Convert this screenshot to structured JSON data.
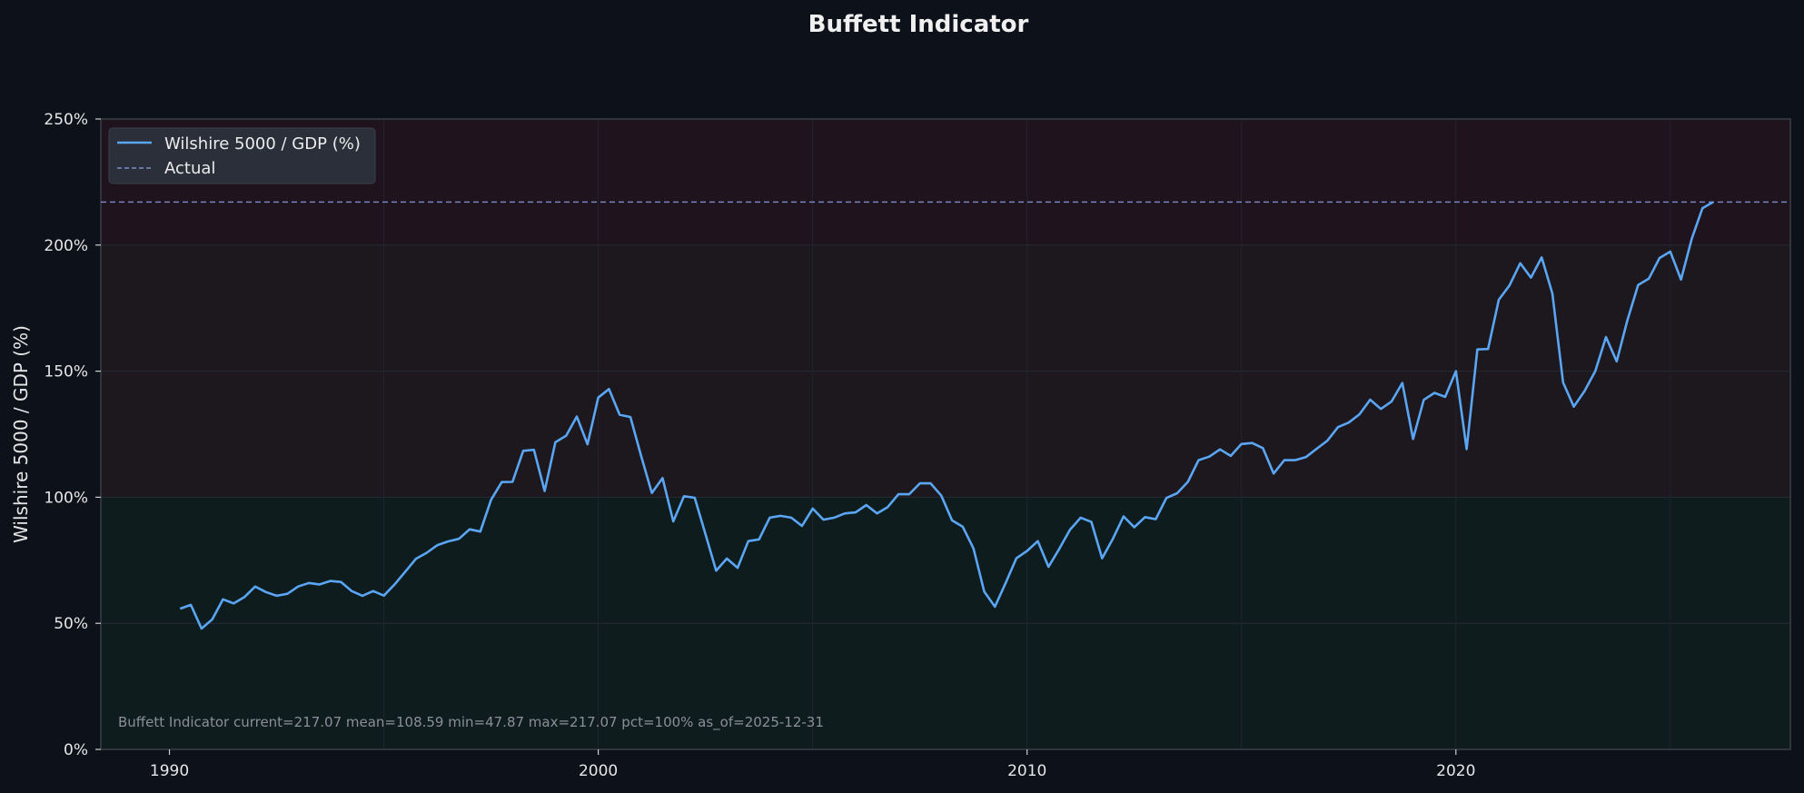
{
  "chart_data": {
    "type": "line",
    "title": "Buffett Indicator",
    "ylabel": "Wilshire 5000 / GDP (%)",
    "xlabel": "",
    "xlim": [
      1988.4,
      2027.8
    ],
    "ylim": [
      0,
      250
    ],
    "x_ticks": [
      1990,
      2000,
      2010,
      2020
    ],
    "y_ticks": [
      {
        "value": 0,
        "label": "0%"
      },
      {
        "value": 50,
        "label": "50%"
      },
      {
        "value": 100,
        "label": "100%"
      },
      {
        "value": 150,
        "label": "150%"
      },
      {
        "value": 200,
        "label": "200%"
      },
      {
        "value": 250,
        "label": "250%"
      }
    ],
    "grid": true,
    "legend_position": "top-left",
    "bands": [
      {
        "from": 0,
        "to": 100,
        "color": "#0f1c1e"
      },
      {
        "from": 100,
        "to": 200,
        "color": "#1d181d"
      },
      {
        "from": 200,
        "to": 250,
        "color": "#1f131d"
      }
    ],
    "series": [
      {
        "name": "Wilshire 5000 / GDP (%)",
        "color": "#5aa6f5",
        "x": [
          1990.25,
          1990.5,
          1990.75,
          1991.0,
          1991.25,
          1991.5,
          1991.75,
          1992.0,
          1992.25,
          1992.5,
          1992.75,
          1993.0,
          1993.25,
          1993.5,
          1993.75,
          1994.0,
          1994.25,
          1994.5,
          1994.75,
          1995.0,
          1995.25,
          1995.5,
          1995.75,
          1996.0,
          1996.25,
          1996.5,
          1996.75,
          1997.0,
          1997.25,
          1997.5,
          1997.75,
          1998.0,
          1998.25,
          1998.5,
          1998.75,
          1999.0,
          1999.25,
          1999.5,
          1999.75,
          2000.0,
          2000.25,
          2000.5,
          2000.75,
          2001.0,
          2001.25,
          2001.5,
          2001.75,
          2002.0,
          2002.25,
          2002.5,
          2002.75,
          2003.0,
          2003.25,
          2003.5,
          2003.75,
          2004.0,
          2004.25,
          2004.5,
          2004.75,
          2005.0,
          2005.25,
          2005.5,
          2005.75,
          2006.0,
          2006.25,
          2006.5,
          2006.75,
          2007.0,
          2007.25,
          2007.5,
          2007.75,
          2008.0,
          2008.25,
          2008.5,
          2008.75,
          2009.0,
          2009.25,
          2009.5,
          2009.75,
          2010.0,
          2010.25,
          2010.5,
          2010.75,
          2011.0,
          2011.25,
          2011.5,
          2011.75,
          2012.0,
          2012.25,
          2012.5,
          2012.75,
          2013.0,
          2013.25,
          2013.5,
          2013.75,
          2014.0,
          2014.25,
          2014.5,
          2014.75,
          2015.0,
          2015.25,
          2015.5,
          2015.75,
          2016.0,
          2016.25,
          2016.5,
          2016.75,
          2017.0,
          2017.25,
          2017.5,
          2017.75,
          2018.0,
          2018.25,
          2018.5,
          2018.75,
          2019.0,
          2019.25,
          2019.5,
          2019.75,
          2020.0,
          2020.25,
          2020.5,
          2020.75,
          2021.0,
          2021.25,
          2021.5,
          2021.75,
          2022.0,
          2022.25,
          2022.5,
          2022.75,
          2023.0,
          2023.25,
          2023.5,
          2023.75,
          2024.0,
          2024.25,
          2024.5,
          2024.75,
          2025.0,
          2025.25,
          2025.5,
          2025.75,
          2026.0
        ],
        "values": [
          55.8,
          57.3,
          47.9,
          51.6,
          59.5,
          57.9,
          60.4,
          64.6,
          62.4,
          60.9,
          61.7,
          64.6,
          66.0,
          65.4,
          66.8,
          66.4,
          62.8,
          60.9,
          62.8,
          61.0,
          65.4,
          70.5,
          75.6,
          78.0,
          81.0,
          82.5,
          83.5,
          87.3,
          86.4,
          99.0,
          106.0,
          106.1,
          118.4,
          118.8,
          102.5,
          121.8,
          124.4,
          132.0,
          121.0,
          139.5,
          142.9,
          132.7,
          131.8,
          116.4,
          101.7,
          107.6,
          90.4,
          100.4,
          99.8,
          85.4,
          70.9,
          75.7,
          72.0,
          82.6,
          83.3,
          91.9,
          92.6,
          91.9,
          88.6,
          95.5,
          91.1,
          91.9,
          93.6,
          94.0,
          96.9,
          93.6,
          96.1,
          101.2,
          101.2,
          105.5,
          105.5,
          100.6,
          90.8,
          88.3,
          79.7,
          62.6,
          56.6,
          66.0,
          75.8,
          78.7,
          82.6,
          72.4,
          79.5,
          87.1,
          91.9,
          90.2,
          75.8,
          83.5,
          92.4,
          88.1,
          92.1,
          91.3,
          99.7,
          101.6,
          106.1,
          114.7,
          116.1,
          119.0,
          116.4,
          121.1,
          121.5,
          119.5,
          109.4,
          114.7,
          114.7,
          115.9,
          119.2,
          122.4,
          127.8,
          129.6,
          132.9,
          138.7,
          135.0,
          138.0,
          145.3,
          123.1,
          138.6,
          141.4,
          139.8,
          150.0,
          119.1,
          158.6,
          158.8,
          178.3,
          184.0,
          192.8,
          187.1,
          195.1,
          180.8,
          145.5,
          135.9,
          142.1,
          150.0,
          163.5,
          153.9,
          170.2,
          184.2,
          186.7,
          194.9,
          197.4,
          186.3,
          202.5,
          214.6,
          217.07
        ]
      },
      {
        "name": "Actual",
        "color": "#7b8fd0",
        "style": "dashed",
        "constant": 217.07
      }
    ],
    "annotation": "Buffett Indicator  current=217.07  mean=108.59  min=47.87  max=217.07  pct=100%  as_of=2025-12-31"
  }
}
